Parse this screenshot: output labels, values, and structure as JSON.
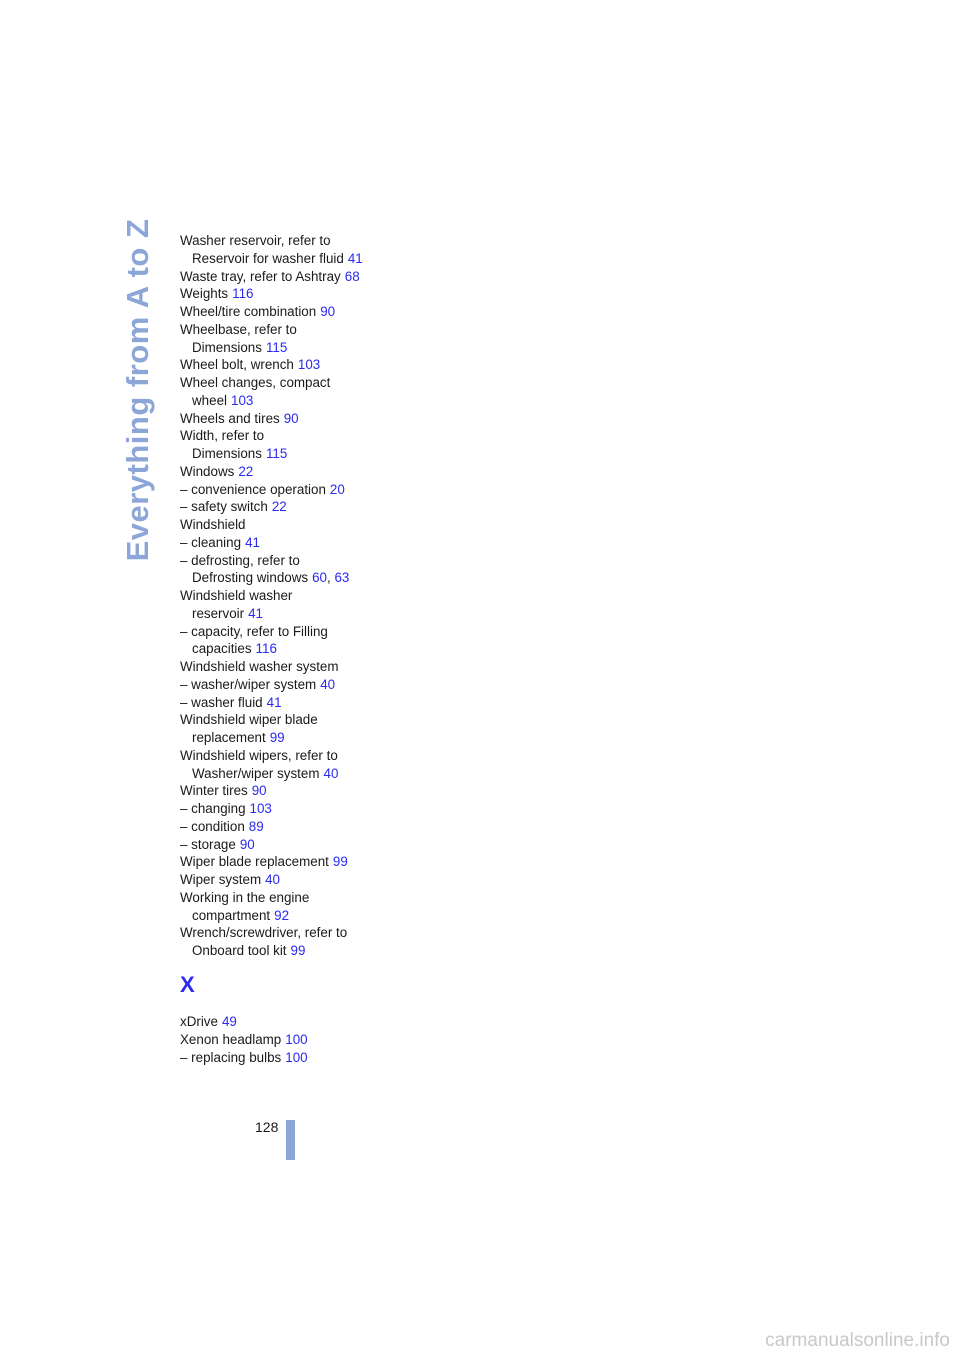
{
  "sidebar": "Everything from A to Z",
  "page_separator": ", ",
  "w_entries": [
    {
      "text": "Washer reservoir, refer to",
      "continuation": "Reservoir for washer fluid",
      "pages": [
        41
      ]
    },
    {
      "text": "Waste tray, refer to Ashtray",
      "pages": [
        68
      ]
    },
    {
      "text": "Weights",
      "pages": [
        116
      ]
    },
    {
      "text": "Wheel/tire combination",
      "pages": [
        90
      ]
    },
    {
      "text": "Wheelbase, refer to",
      "continuation": "Dimensions",
      "pages": [
        115
      ]
    },
    {
      "text": "Wheel bolt, wrench",
      "pages": [
        103
      ]
    },
    {
      "text": "Wheel changes, compact",
      "continuation": "wheel",
      "pages": [
        103
      ]
    },
    {
      "text": "Wheels and tires",
      "pages": [
        90
      ]
    },
    {
      "text": "Width, refer to",
      "continuation": "Dimensions",
      "pages": [
        115
      ]
    },
    {
      "text": "Windows",
      "pages": [
        22
      ]
    },
    {
      "text": "– convenience operation",
      "pages": [
        20
      ]
    },
    {
      "text": "– safety switch",
      "pages": [
        22
      ]
    },
    {
      "text": "Windshield",
      "pages": []
    },
    {
      "text": "– cleaning",
      "pages": [
        41
      ]
    },
    {
      "text": "– defrosting, refer to",
      "continuation": "Defrosting windows",
      "pages": [
        60,
        63
      ]
    },
    {
      "text": "Windshield washer",
      "continuation": "reservoir",
      "pages": [
        41
      ]
    },
    {
      "text": "– capacity, refer to Filling",
      "continuation": "capacities",
      "pages": [
        116
      ]
    },
    {
      "text": "Windshield washer system",
      "pages": []
    },
    {
      "text": "– washer/wiper system",
      "pages": [
        40
      ]
    },
    {
      "text": "– washer fluid",
      "pages": [
        41
      ]
    },
    {
      "text": "Windshield wiper blade",
      "continuation": "replacement",
      "pages": [
        99
      ]
    },
    {
      "text": "Windshield wipers, refer to",
      "continuation": "Washer/wiper system",
      "pages": [
        40
      ]
    },
    {
      "text": "Winter tires",
      "pages": [
        90
      ]
    },
    {
      "text": "– changing",
      "pages": [
        103
      ]
    },
    {
      "text": "– condition",
      "pages": [
        89
      ]
    },
    {
      "text": "– storage",
      "pages": [
        90
      ]
    },
    {
      "text": "Wiper blade replacement",
      "pages": [
        99
      ]
    },
    {
      "text": "Wiper system",
      "pages": [
        40
      ]
    },
    {
      "text": "Working in the engine",
      "continuation": "compartment",
      "pages": [
        92
      ]
    },
    {
      "text": "Wrench/screwdriver, refer to",
      "continuation": "Onboard tool kit",
      "pages": [
        99
      ]
    }
  ],
  "x_section": {
    "heading": "X",
    "entries": [
      {
        "text": "xDrive",
        "pages": [
          49
        ]
      },
      {
        "text": "Xenon headlamp",
        "pages": [
          100
        ]
      },
      {
        "text": "– replacing bulbs",
        "pages": [
          100
        ]
      }
    ]
  },
  "page_number": 128,
  "watermark": "carmanualsonline.info"
}
